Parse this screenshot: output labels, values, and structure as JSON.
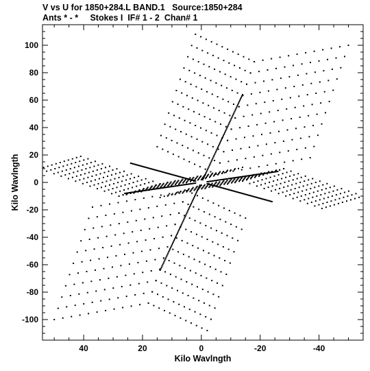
{
  "header": {
    "title_line1": "V vs U for 1850+284.L BAND.1   Source:1850+284",
    "title_line2": "Ants * - *     Stokes I  IF# 1 - 2  Chan# 1"
  },
  "chart_data": {
    "type": "scatter",
    "xlabel": "Kilo Wavlngth",
    "ylabel": "Kilo Wavlngth",
    "xlim": [
      54,
      -55
    ],
    "ylim": [
      -115,
      115
    ],
    "xticks": [
      40,
      20,
      0,
      -20,
      -40
    ],
    "xtick_labels": [
      "40",
      "20",
      "0",
      "-20",
      "-40"
    ],
    "yticks": [
      100,
      80,
      60,
      40,
      20,
      0,
      -20,
      -40,
      -60,
      -80,
      -100
    ],
    "ytick_labels": [
      "100",
      "80",
      "60",
      "40",
      "20",
      "0",
      "-20",
      "-40",
      "-60",
      "-80",
      "-100"
    ],
    "grid": false,
    "marker_color": "#000000",
    "baseline_tracks": [
      {
        "u_start": -0.5,
        "v_start": 2,
        "u_end": -14,
        "v_end": 64
      },
      {
        "u_start": 0.5,
        "v_start": -2,
        "u_end": 14,
        "v_end": -64
      },
      {
        "u_start": 2,
        "v_start": 1,
        "u_end": 24,
        "v_end": 14
      },
      {
        "u_start": -2,
        "v_start": -1,
        "u_end": -24,
        "v_end": -14
      },
      {
        "u_start": 2,
        "v_start": -0.5,
        "u_end": 26,
        "v_end": -8
      },
      {
        "u_start": -2,
        "v_start": 0.5,
        "u_end": -26,
        "v_end": 8
      }
    ],
    "chevron_arms": [
      {
        "tip": [
          -18,
          88
        ],
        "end": [
          -50,
          100
        ],
        "offset": [
          1.3,
          -8.2
        ]
      },
      {
        "tip": [
          -18,
          88
        ],
        "end": [
          2,
          108
        ],
        "offset": [
          1.3,
          -8.2
        ]
      },
      {
        "tip": [
          18,
          -88
        ],
        "end": [
          50,
          -100
        ],
        "offset": [
          -1.3,
          8.2
        ]
      },
      {
        "tip": [
          18,
          -88
        ],
        "end": [
          -2,
          -108
        ],
        "offset": [
          -1.3,
          8.2
        ]
      },
      {
        "tip": [
          -28,
          10
        ],
        "end": [
          -55,
          -10
        ],
        "offset": [
          1.4,
          -0.9
        ]
      },
      {
        "tip": [
          -28,
          10
        ],
        "end": [
          0,
          -2
        ],
        "offset": [
          1.4,
          -0.9
        ]
      },
      {
        "tip": [
          28,
          -10
        ],
        "end": [
          55,
          10
        ],
        "offset": [
          -1.4,
          0.9
        ]
      },
      {
        "tip": [
          28,
          -10
        ],
        "end": [
          0,
          2
        ],
        "offset": [
          -1.4,
          0.9
        ]
      }
    ],
    "arm_rows": 11,
    "points_per_arm": 12
  }
}
